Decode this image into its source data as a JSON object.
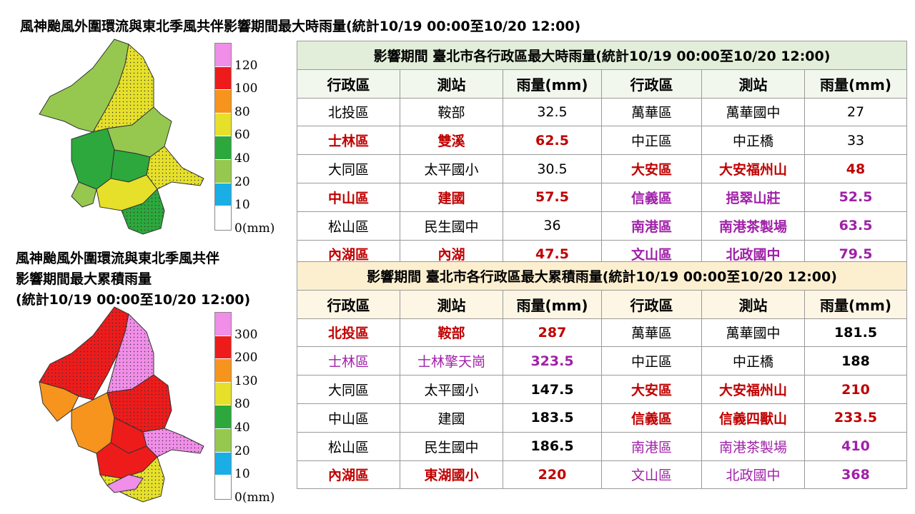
{
  "title_top": "風神颱風外圍環流與東北季風共伴影響期間最大時雨量(統計10/19 00:00至10/20 12:00)",
  "title_bottom": {
    "line1": "風神颱風外圍環流與東北季風共伴",
    "line2": "影響期間最大累積雨量",
    "line3": "(統計10/19 00:00至10/20 12:00)"
  },
  "legend_hourly": {
    "colors": [
      "#f08ee8",
      "#ee1b1b",
      "#f7941d",
      "#e6e02b",
      "#2ca83c",
      "#96c850",
      "#1aaee6",
      "#ffffff"
    ],
    "ticks": [
      "120",
      "100",
      "80",
      "60",
      "40",
      "20",
      "10",
      "0(mm)"
    ]
  },
  "legend_accum": {
    "colors": [
      "#f08ee8",
      "#ee1b1b",
      "#f7941d",
      "#e6e02b",
      "#2ca83c",
      "#96c850",
      "#1aaee6",
      "#ffffff"
    ],
    "ticks": [
      "300",
      "200",
      "130",
      "80",
      "40",
      "20",
      "10",
      "0(mm)"
    ]
  },
  "table_hourly": {
    "caption": "影響期間  臺北市各行政區最大時雨量(統計10/19 00:00至10/20 12:00)",
    "headers": [
      "行政區",
      "測站",
      "雨量(mm)",
      "行政區",
      "測站",
      "雨量(mm)"
    ],
    "rows": [
      [
        {
          "t": "北投區",
          "c": ""
        },
        {
          "t": "鞍部",
          "c": ""
        },
        {
          "t": "32.5",
          "c": ""
        },
        {
          "t": "萬華區",
          "c": ""
        },
        {
          "t": "萬華國中",
          "c": ""
        },
        {
          "t": "27",
          "c": ""
        }
      ],
      [
        {
          "t": "士林區",
          "c": "red"
        },
        {
          "t": "雙溪",
          "c": "red"
        },
        {
          "t": "62.5",
          "c": "red"
        },
        {
          "t": "中正區",
          "c": ""
        },
        {
          "t": "中正橋",
          "c": ""
        },
        {
          "t": "33",
          "c": ""
        }
      ],
      [
        {
          "t": "大同區",
          "c": ""
        },
        {
          "t": "太平國小",
          "c": ""
        },
        {
          "t": "30.5",
          "c": ""
        },
        {
          "t": "大安區",
          "c": "red"
        },
        {
          "t": "大安福州山",
          "c": "red"
        },
        {
          "t": "48",
          "c": "red"
        }
      ],
      [
        {
          "t": "中山區",
          "c": "red"
        },
        {
          "t": "建國",
          "c": "red"
        },
        {
          "t": "57.5",
          "c": "red"
        },
        {
          "t": "信義區",
          "c": "purpleb"
        },
        {
          "t": "挹翠山莊",
          "c": "purpleb"
        },
        {
          "t": "52.5",
          "c": "purpleb"
        }
      ],
      [
        {
          "t": "松山區",
          "c": ""
        },
        {
          "t": "民生國中",
          "c": ""
        },
        {
          "t": "36",
          "c": ""
        },
        {
          "t": "南港區",
          "c": "purpleb"
        },
        {
          "t": "南港茶製場",
          "c": "purpleb"
        },
        {
          "t": "63.5",
          "c": "purpleb"
        }
      ],
      [
        {
          "t": "內湖區",
          "c": "red"
        },
        {
          "t": "內湖",
          "c": "red"
        },
        {
          "t": "47.5",
          "c": "red"
        },
        {
          "t": "文山區",
          "c": "purpleb"
        },
        {
          "t": "北政國中",
          "c": "purpleb"
        },
        {
          "t": "79.5",
          "c": "purpleb"
        }
      ]
    ]
  },
  "table_accum": {
    "caption": "影響期間  臺北市各行政區最大累積雨量(統計10/19 00:00至10/20 12:00)",
    "headers": [
      "行政區",
      "測站",
      "雨量(mm)",
      "行政區",
      "測站",
      "雨量(mm)"
    ],
    "rows": [
      [
        {
          "t": "北投區",
          "c": "red"
        },
        {
          "t": "鞍部",
          "c": "red"
        },
        {
          "t": "287",
          "c": "red"
        },
        {
          "t": "萬華區",
          "c": ""
        },
        {
          "t": "萬華國中",
          "c": ""
        },
        {
          "t": "181.5",
          "c": "bold"
        }
      ],
      [
        {
          "t": "士林區",
          "c": "purple"
        },
        {
          "t": "士林擎天崗",
          "c": "purple"
        },
        {
          "t": "323.5",
          "c": "purpleb"
        },
        {
          "t": "中正區",
          "c": ""
        },
        {
          "t": "中正橋",
          "c": ""
        },
        {
          "t": "188",
          "c": "bold"
        }
      ],
      [
        {
          "t": "大同區",
          "c": ""
        },
        {
          "t": "太平國小",
          "c": ""
        },
        {
          "t": "147.5",
          "c": "bold"
        },
        {
          "t": "大安區",
          "c": "red"
        },
        {
          "t": "大安福州山",
          "c": "red"
        },
        {
          "t": "210",
          "c": "red"
        }
      ],
      [
        {
          "t": "中山區",
          "c": ""
        },
        {
          "t": "建國",
          "c": ""
        },
        {
          "t": "183.5",
          "c": "bold"
        },
        {
          "t": "信義區",
          "c": "red"
        },
        {
          "t": "信義四獸山",
          "c": "red"
        },
        {
          "t": "233.5",
          "c": "red"
        }
      ],
      [
        {
          "t": "松山區",
          "c": ""
        },
        {
          "t": "民生國中",
          "c": ""
        },
        {
          "t": "186.5",
          "c": "bold"
        },
        {
          "t": "南港區",
          "c": "purple"
        },
        {
          "t": "南港茶製場",
          "c": "purple"
        },
        {
          "t": "410",
          "c": "purpleb"
        }
      ],
      [
        {
          "t": "內湖區",
          "c": "red"
        },
        {
          "t": "東湖國小",
          "c": "red"
        },
        {
          "t": "220",
          "c": "red"
        },
        {
          "t": "文山區",
          "c": "purple"
        },
        {
          "t": "北政國中",
          "c": "purple"
        },
        {
          "t": "368",
          "c": "purpleb"
        }
      ]
    ]
  }
}
